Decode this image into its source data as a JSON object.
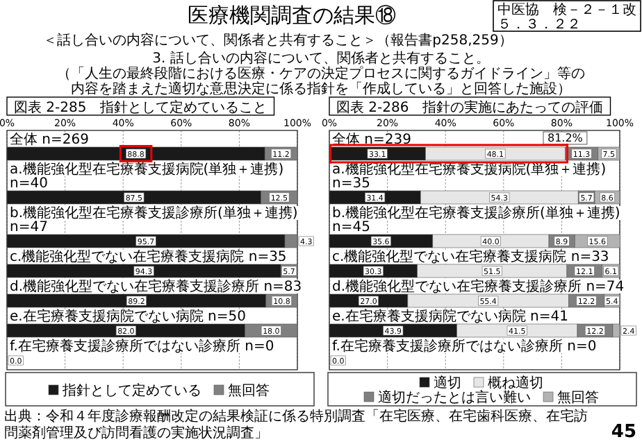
{
  "chart_data": [
    {
      "type": "bar",
      "orientation": "horizontal",
      "stacked": true,
      "title": "図表 2-285　指針として定めていること",
      "annotations": [
        "医療機関調査の結果⑱",
        "＜話し合いの内容について、関係者と共有すること＞（報告書p258,259）",
        "3. 話し合いの内容について、関係者と共有すること。",
        "（「人生の最終段階における医療・ケアの決定プロセスに関するガイドライン」等の",
        "内容を踏まえた適切な意思決定に係る指針を「作成している」と回答した施設）",
        "中医協　検－２－１改",
        "５．３．２２",
        "出典：令和４年度診療報酬改定の結果検証に係る特別調査「在宅医療、在宅歯科医療、在宅訪問薬剤管理及び訪問看護の実施状況調査」",
        "45"
      ],
      "categories": [
        "全体 n=269",
        "a.機能強化型在宅療養支援病院(単独＋連携) n=40",
        "b.機能強化型在宅療養支援診療所(単独＋連携) n=47",
        "c.機能強化型でない在宅療養支援病院 n=35",
        "d.機能強化型でない在宅療養支援診療所 n=83",
        "e.在宅療養支援病院でない病院 n=50",
        "f.在宅療養支援診療所ではない診療所 n=0"
      ],
      "series": [
        {
          "name": "指針として定めている",
          "color": "#1a1a1a",
          "values": [
            88.8,
            87.5,
            95.7,
            94.3,
            89.2,
            82.0,
            0.0
          ],
          "value_labels": [
            "88.8",
            "87.5",
            "95.7",
            "94.3",
            "89.2",
            "82.0",
            "0.0"
          ]
        },
        {
          "name": "無回答",
          "color": "#808080",
          "values": [
            11.2,
            12.5,
            4.3,
            5.7,
            10.8,
            18.0,
            null
          ],
          "value_labels": [
            "11.2",
            "12.5",
            "4.3",
            "5.7",
            "10.8",
            "18.0",
            null
          ]
        }
      ],
      "xlim": [
        0,
        100
      ],
      "xticks": [
        {
          "value": 0,
          "label": "0%"
        },
        {
          "value": 20,
          "label": "20%"
        },
        {
          "value": 40,
          "label": "40%"
        },
        {
          "value": 60,
          "label": "60%"
        },
        {
          "value": 80,
          "label": "80%"
        },
        {
          "value": 100,
          "label": "100%"
        }
      ],
      "grid": "x",
      "legend": "bottom"
    },
    {
      "type": "bar",
      "orientation": "horizontal",
      "stacked": true,
      "title": "図表 2-286　指針の実施にあたっての評価",
      "annotations": [
        {
          "text": "81.2%",
          "x": 81.2,
          "y": "全体 n=239"
        }
      ],
      "categories": [
        "全体 n=239",
        "a.機能強化型在宅療養支援病院(単独＋連携) n=35",
        "b.機能強化型在宅療養支援診療所(単独＋連携) n=45",
        "c.機能強化型でない在宅療養支援病院 n=33",
        "d.機能強化型でない在宅療養支援診療所 n=74",
        "e.在宅療養支援病院でない病院 n=41",
        "f.在宅療養支援診療所ではない診療所 n=0"
      ],
      "series": [
        {
          "name": "適切",
          "color": "#1a1a1a",
          "values": [
            33.1,
            31.4,
            35.6,
            30.3,
            27.0,
            43.9,
            0.0
          ],
          "value_labels": [
            "33.1",
            "31.4",
            "35.6",
            "30.3",
            "27.0",
            "43.9",
            "0.0"
          ]
        },
        {
          "name": "概ね適切",
          "color": "#e6e6e6",
          "values": [
            48.1,
            54.3,
            40.0,
            51.5,
            55.4,
            41.5,
            null
          ],
          "value_labels": [
            "48.1",
            "54.3",
            "40.0",
            "51.5",
            "55.4",
            "41.5",
            null
          ]
        },
        {
          "name": "適切だったとは言い難い",
          "color": "#808080",
          "values": [
            11.3,
            5.7,
            8.9,
            12.1,
            12.2,
            12.2,
            null
          ],
          "value_labels": [
            "11.3",
            "5.7",
            "8.9",
            "12.1",
            "12.2",
            "12.2",
            null
          ]
        },
        {
          "name": "無回答",
          "color": "#b3b3b3",
          "values": [
            7.5,
            8.6,
            15.6,
            6.1,
            5.4,
            2.4,
            null
          ],
          "value_labels": [
            "7.5",
            "8.6",
            "15.6",
            "6.1",
            "5.4",
            "2.4",
            null
          ]
        }
      ],
      "xlim": [
        0,
        100
      ],
      "xticks": [
        {
          "value": 0,
          "label": "0%"
        },
        {
          "value": 20,
          "label": "20%"
        },
        {
          "value": 40,
          "label": "40%"
        },
        {
          "value": 60,
          "label": "60%"
        },
        {
          "value": 80,
          "label": "80%"
        },
        {
          "value": 100,
          "label": "100%"
        }
      ],
      "grid": "x",
      "legend": "bottom"
    }
  ]
}
